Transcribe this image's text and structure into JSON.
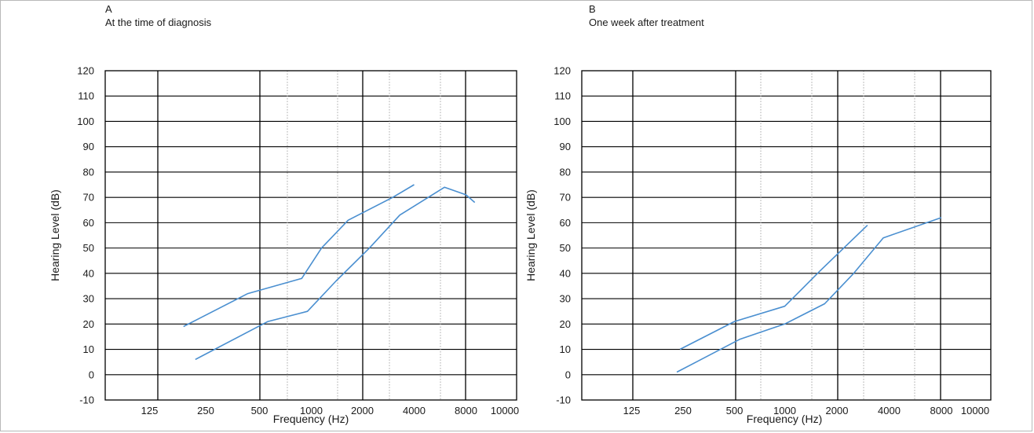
{
  "chart_data": [
    {
      "type": "line",
      "panel_label": "A",
      "title": "At the time of diagnosis",
      "xlabel": "Frequency (Hz)",
      "ylabel": "Hearing Level (dB)",
      "x_scale": "log",
      "ylim": [
        -10,
        120
      ],
      "yticks": [
        "-10",
        "0",
        "10",
        "20",
        "30",
        "40",
        "50",
        "60",
        "70",
        "80",
        "90",
        "100",
        "110",
        "120"
      ],
      "xticks": [
        "125",
        "250",
        "500",
        "1000",
        "2000",
        "4000",
        "8000",
        "10000"
      ],
      "grid": true,
      "series": [
        {
          "color": "#4a8fd0",
          "x": [
            190,
            430,
            880,
            1150,
            1650,
            3000,
            4000
          ],
          "y": [
            19,
            32,
            38,
            50,
            61,
            70,
            75
          ]
        },
        {
          "color": "#4a8fd0",
          "x": [
            220,
            560,
            950,
            1400,
            2200,
            3300,
            6000,
            8000,
            9000
          ],
          "y": [
            6,
            21,
            25,
            37,
            50,
            63,
            74,
            71,
            68
          ]
        }
      ]
    },
    {
      "type": "line",
      "panel_label": "B",
      "title": "One week after treatment",
      "xlabel": "Frequency (Hz)",
      "ylabel": "Hearing Level (dB)",
      "x_scale": "log",
      "ylim": [
        -10,
        120
      ],
      "yticks": [
        "-10",
        "0",
        "10",
        "20",
        "30",
        "40",
        "50",
        "60",
        "70",
        "80",
        "90",
        "100",
        "110",
        "120"
      ],
      "xticks": [
        "125",
        "250",
        "500",
        "1000",
        "2000",
        "4000",
        "8000",
        "10000"
      ],
      "grid": true,
      "series": [
        {
          "color": "#4a8fd0",
          "x": [
            240,
            500,
            1000,
            1600,
            3000
          ],
          "y": [
            10,
            21,
            27,
            41,
            59
          ]
        },
        {
          "color": "#4a8fd0",
          "x": [
            230,
            540,
            1000,
            1700,
            2500,
            3700,
            8000
          ],
          "y": [
            1,
            14,
            20,
            28,
            40,
            54,
            62
          ]
        }
      ]
    }
  ]
}
